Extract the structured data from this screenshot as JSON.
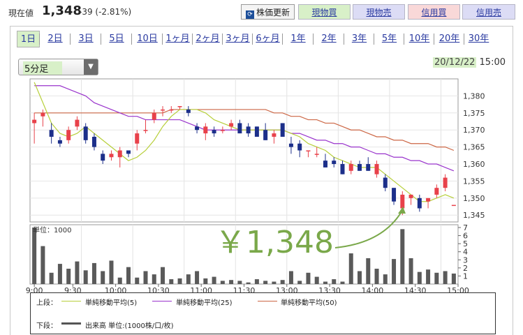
{
  "header": {
    "price_label": "現在値",
    "price": "1,348",
    "change": "-39 (-2.81%)",
    "refresh_label": "株価更新",
    "refresh_icon": "refresh-icon",
    "buttons": [
      "現物買",
      "現物売",
      "信用買",
      "信用売"
    ],
    "button_colors": [
      "#d8f0c8",
      "#dcdcf5",
      "#f9d8d8",
      "#dcdcf5"
    ]
  },
  "tabs": [
    "1日",
    "2日",
    "3日",
    "5日",
    "10日",
    "1ヶ月",
    "2ヶ月",
    "3ヶ月",
    "6ヶ月",
    "1年",
    "2年",
    "3年",
    "5年",
    "10年",
    "20年",
    "30年"
  ],
  "active_tab": "1日",
  "interval_select": "5分足",
  "datetime": {
    "date": "20/12/22",
    "time": "15:00"
  },
  "annotation": "￥1,348",
  "legend": {
    "upper_label": "上段：",
    "lower_label": "下段：",
    "items": [
      {
        "label": "単純移動平均(5)",
        "color": "#b7cf3a"
      },
      {
        "label": "単純移動平均(25)",
        "color": "#9933cc"
      },
      {
        "label": "単純移動平均(50)",
        "color": "#cc6644"
      }
    ],
    "volume_label": "出来高 単位:(1000株/口/枚)"
  },
  "chart_data": {
    "type": "candlestick",
    "x_ticks": [
      "9:00",
      "9:30",
      "10:00",
      "10:30",
      "11:00",
      "11:30",
      "13:00",
      "13:30",
      "14:00",
      "14:30",
      "15:00"
    ],
    "price_ticks": [
      "1,380",
      "1,375",
      "1,370",
      "1,365",
      "1,360",
      "1,355",
      "1,350",
      "1,345"
    ],
    "ylim": [
      1343,
      1385
    ],
    "candles": [
      {
        "o": 1372,
        "h": 1375,
        "l": 1366,
        "c": 1373
      },
      {
        "o": 1374,
        "h": 1376,
        "l": 1371,
        "c": 1375
      },
      {
        "o": 1370,
        "h": 1372,
        "l": 1366,
        "c": 1368
      },
      {
        "o": 1367,
        "h": 1368,
        "l": 1365,
        "c": 1366
      },
      {
        "o": 1367,
        "h": 1371,
        "l": 1366,
        "c": 1370
      },
      {
        "o": 1371,
        "h": 1374,
        "l": 1370,
        "c": 1373
      },
      {
        "o": 1371,
        "h": 1372,
        "l": 1366,
        "c": 1367
      },
      {
        "o": 1368,
        "h": 1369,
        "l": 1364,
        "c": 1365
      },
      {
        "o": 1363,
        "h": 1364,
        "l": 1360,
        "c": 1361
      },
      {
        "o": 1362,
        "h": 1364,
        "l": 1361,
        "c": 1363
      },
      {
        "o": 1362,
        "h": 1365,
        "l": 1359,
        "c": 1364
      },
      {
        "o": 1364,
        "h": 1364,
        "l": 1362,
        "c": 1363
      },
      {
        "o": 1366,
        "h": 1370,
        "l": 1364,
        "c": 1369
      },
      {
        "o": 1370,
        "h": 1373,
        "l": 1369,
        "c": 1370
      },
      {
        "o": 1373,
        "h": 1376,
        "l": 1372,
        "c": 1375
      },
      {
        "o": 1376,
        "h": 1377,
        "l": 1374,
        "c": 1376
      },
      {
        "o": 1376,
        "h": 1377,
        "l": 1375,
        "c": 1376
      },
      {
        "o": 1377,
        "h": 1377,
        "l": 1376,
        "c": 1377
      },
      {
        "o": 1376,
        "h": 1377,
        "l": 1374,
        "c": 1375
      },
      {
        "o": 1371,
        "h": 1372,
        "l": 1369,
        "c": 1370
      },
      {
        "o": 1369,
        "h": 1372,
        "l": 1367,
        "c": 1371
      },
      {
        "o": 1370,
        "h": 1371,
        "l": 1368,
        "c": 1369
      },
      {
        "o": 1370,
        "h": 1371,
        "l": 1369,
        "c": 1370
      },
      {
        "o": 1371,
        "h": 1373,
        "l": 1370,
        "c": 1372
      },
      {
        "o": 1372,
        "h": 1373,
        "l": 1369,
        "c": 1369
      },
      {
        "o": 1371,
        "h": 1372,
        "l": 1368,
        "c": 1369
      },
      {
        "o": 1371,
        "h": 1371,
        "l": 1368,
        "c": 1368
      },
      {
        "o": 1370,
        "h": 1372,
        "l": 1367,
        "c": 1367
      },
      {
        "o": 1368,
        "h": 1370,
        "l": 1366,
        "c": 1369
      },
      {
        "o": 1372,
        "h": 1372,
        "l": 1368,
        "c": 1368
      },
      {
        "o": 1366,
        "h": 1368,
        "l": 1363,
        "c": 1365
      },
      {
        "o": 1366,
        "h": 1367,
        "l": 1362,
        "c": 1364
      },
      {
        "o": 1364,
        "h": 1364,
        "l": 1362,
        "c": 1364
      },
      {
        "o": 1363,
        "h": 1365,
        "l": 1362,
        "c": 1363
      },
      {
        "o": 1361,
        "h": 1363,
        "l": 1359,
        "c": 1359
      },
      {
        "o": 1361,
        "h": 1362,
        "l": 1359,
        "c": 1360
      },
      {
        "o": 1360,
        "h": 1361,
        "l": 1357,
        "c": 1357
      },
      {
        "o": 1358,
        "h": 1361,
        "l": 1357,
        "c": 1360
      },
      {
        "o": 1360,
        "h": 1361,
        "l": 1358,
        "c": 1358
      },
      {
        "o": 1360,
        "h": 1362,
        "l": 1358,
        "c": 1358
      },
      {
        "o": 1357,
        "h": 1361,
        "l": 1356,
        "c": 1360
      },
      {
        "o": 1356,
        "h": 1357,
        "l": 1352,
        "c": 1353
      },
      {
        "o": 1353,
        "h": 1353,
        "l": 1348,
        "c": 1349
      },
      {
        "o": 1347,
        "h": 1352,
        "l": 1345,
        "c": 1351
      },
      {
        "o": 1350,
        "h": 1351,
        "l": 1348,
        "c": 1351
      },
      {
        "o": 1350,
        "h": 1351,
        "l": 1346,
        "c": 1347
      },
      {
        "o": 1349,
        "h": 1350,
        "l": 1347,
        "c": 1350
      },
      {
        "o": 1351,
        "h": 1354,
        "l": 1350,
        "c": 1353
      },
      {
        "o": 1353,
        "h": 1357,
        "l": 1352,
        "c": 1356
      },
      {
        "o": 1348,
        "h": 1348,
        "l": 1348,
        "c": 1348
      }
    ],
    "ma5": [
      1384,
      1378,
      1372,
      1369,
      1368,
      1369,
      1371,
      1369,
      1367,
      1365,
      1363,
      1361,
      1362,
      1364,
      1367,
      1371,
      1374,
      1376,
      1376,
      1376,
      1375,
      1373,
      1372,
      1371,
      1370,
      1370,
      1370,
      1370,
      1370,
      1370,
      1369,
      1368,
      1366,
      1365,
      1364,
      1362,
      1361,
      1360,
      1359,
      1359,
      1359,
      1357,
      1355,
      1353,
      1351,
      1349,
      1349,
      1350,
      1351,
      1350
    ],
    "ma25": [
      1383,
      1383,
      1383,
      1383,
      1382,
      1381,
      1380,
      1378,
      1377,
      1376,
      1375,
      1374,
      1374,
      1373,
      1373,
      1373,
      1373,
      1373,
      1372,
      1371,
      1370,
      1370,
      1370,
      1370,
      1370,
      1370,
      1370,
      1370,
      1370,
      1370,
      1369,
      1369,
      1368,
      1367,
      1367,
      1366,
      1366,
      1365,
      1365,
      1364,
      1363,
      1363,
      1362,
      1362,
      1361,
      1361,
      1360,
      1360,
      1359,
      1358
    ],
    "ma50": [
      1375,
      1375,
      1375,
      1375,
      1375,
      1375,
      1375,
      1375,
      1375,
      1375,
      1375,
      1375,
      1375,
      1375,
      1375,
      1375,
      1376,
      1376,
      1376,
      1376,
      1376,
      1376,
      1376,
      1376,
      1376,
      1376,
      1376,
      1376,
      1375,
      1375,
      1374,
      1374,
      1373,
      1373,
      1372,
      1372,
      1371,
      1370,
      1370,
      1369,
      1368,
      1368,
      1367,
      1367,
      1366,
      1366,
      1366,
      1365,
      1365,
      1364
    ],
    "volume_unit_label": "単位：1000",
    "volume_ticks": [
      "7",
      "6",
      "5",
      "4",
      "3",
      "2",
      "1"
    ],
    "volume_ylim": [
      0,
      7
    ],
    "volume": [
      7,
      4.7,
      1.4,
      2.5,
      1.9,
      2.8,
      1.7,
      2.6,
      1.6,
      2.9,
      0.8,
      2.1,
      0.8,
      1.6,
      1.2,
      2.1,
      0.6,
      0.7,
      1.2,
      1.6,
      0.7,
      0.9,
      0.4,
      0.5,
      0.4,
      0.2,
      0.6,
      0.4,
      0.3,
      0.5,
      1.6,
      0.4,
      1.4,
      0.9,
      0.3,
      0.6,
      0.3,
      3.8,
      1.6,
      3.2,
      1.9,
      1.2,
      3.1,
      6.8,
      3.2,
      1.5,
      1.8,
      1.4,
      1.6,
      1.3
    ]
  }
}
